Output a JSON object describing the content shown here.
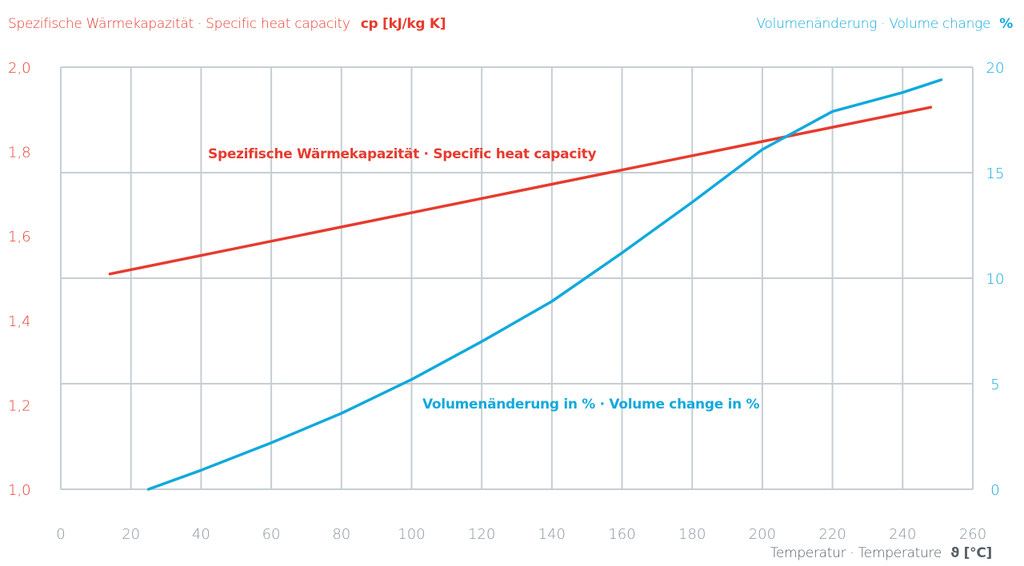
{
  "colors": {
    "red": "#e63b2e",
    "blue": "#12a9dc",
    "grid": "#c5ced4",
    "tick": "#8a969e",
    "xlabel": "#555f66"
  },
  "chart_data": {
    "type": "line",
    "title_left": "Spezifische Wärmekapazität · Specific heat capacity",
    "title_left_unit": "cp [kJ/kg K]",
    "title_right": "Volumenänderung · Volume change",
    "title_right_unit": "%",
    "xlabel": "Temperatur · Temperature",
    "xlabel_unit": "ϑ [°C]",
    "xlim": [
      0,
      260
    ],
    "xticks": [
      "0",
      "20",
      "40",
      "60",
      "80",
      "100",
      "120",
      "140",
      "160",
      "180",
      "200",
      "220",
      "240",
      "260"
    ],
    "ylim_left": [
      1.0,
      2.0
    ],
    "yticks_left": [
      "1,0",
      "1,2",
      "1,4",
      "1,6",
      "1,8",
      "2,0"
    ],
    "ylim_right": [
      0,
      20
    ],
    "yticks_right": [
      "0",
      "5",
      "10",
      "15",
      "20"
    ],
    "grid": true,
    "series": [
      {
        "name": "Spezifische Wärmekapazität · Specific heat capacity",
        "axis": "left",
        "x": [
          14,
          248
        ],
        "y": [
          1.51,
          1.905
        ]
      },
      {
        "name": "Volumenänderung in % · Volume change in %",
        "axis": "right",
        "x": [
          25,
          40,
          60,
          80,
          100,
          120,
          140,
          160,
          180,
          200,
          220,
          240,
          251
        ],
        "y": [
          0,
          0.9,
          2.2,
          3.6,
          5.2,
          7.0,
          8.9,
          11.2,
          13.6,
          16.1,
          17.9,
          18.8,
          19.4
        ]
      }
    ]
  }
}
